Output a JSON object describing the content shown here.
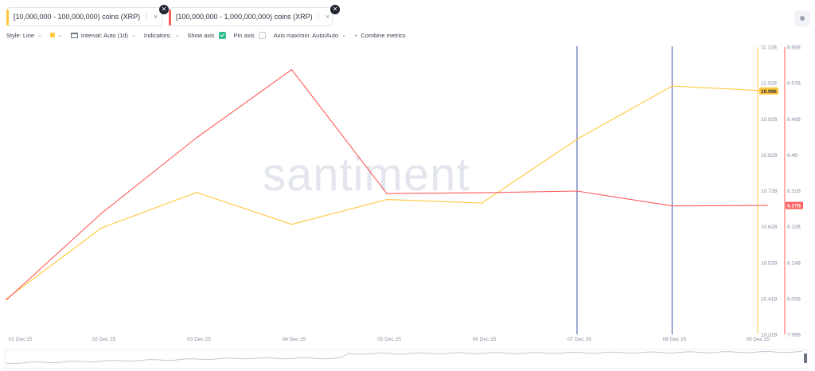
{
  "metrics": [
    {
      "label": "[10,000,000 - 100,000,000) coins (XRP)",
      "color": "#ffc83d"
    },
    {
      "label": "[100,000,000 - 1,000,000,000) coins (XRP)",
      "color": "#ff5b5b"
    }
  ],
  "icons": {
    "menu": "⋮",
    "remove": "×",
    "close": "✕"
  },
  "toolbar": {
    "style": "Style: Line",
    "interval": "Interval: Auto (1d)",
    "indicators": "Indicators:",
    "show_axis": "Show axis",
    "pin_axis": "Pin axis",
    "axis_maxmin": "Axis max/min: Auto/Auto",
    "combine": "Combine metrics"
  },
  "watermark": "santiment",
  "chart_data": {
    "type": "line",
    "x": [
      "01 Dec 25",
      "02 Dec 25",
      "03 Dec 25",
      "04 Dec 25",
      "05 Dec 25",
      "06 Dec 25",
      "07 Dec 25",
      "08 Dec 25",
      "09 Dec 25"
    ],
    "series": [
      {
        "name": "[10,000,000 - 100,000,000) coins (XRP)",
        "color": "#ffc83d",
        "axis": "left",
        "values": [
          10.41,
          10.61,
          10.71,
          10.62,
          10.69,
          10.68,
          10.86,
          11.01,
          10.996
        ]
      },
      {
        "name": "[100,000,000 - 1,000,000,000) coins (XRP)",
        "color": "#ff5b5b",
        "axis": "right",
        "values": [
          8.044,
          8.255,
          8.439,
          8.605,
          8.303,
          8.305,
          8.309,
          8.273,
          8.274
        ]
      }
    ],
    "axis1": {
      "ticks": [
        "11.12B",
        "11.02B",
        "10.92B",
        "10.82B",
        "10.72B",
        "10.62B",
        "10.52B",
        "10.41B",
        "10.31B"
      ],
      "min": 10.31,
      "max": 11.12,
      "color": "#ffc83d",
      "last_label": "10.996"
    },
    "axis2": {
      "ticks": [
        "8.66B",
        "8.57B",
        "8.48B",
        "8.4B",
        "8.31B",
        "8.22B",
        "8.14B",
        "8.05B",
        "7.96B"
      ],
      "min": 7.96,
      "max": 8.66,
      "color": "#ff5b5b",
      "last_label": "8.27B"
    },
    "markers": [
      "07 Dec 25",
      "08 Dec 25"
    ],
    "marker_color": "#5f6fb5"
  },
  "navigator": {
    "color": "#c3c8d4"
  }
}
